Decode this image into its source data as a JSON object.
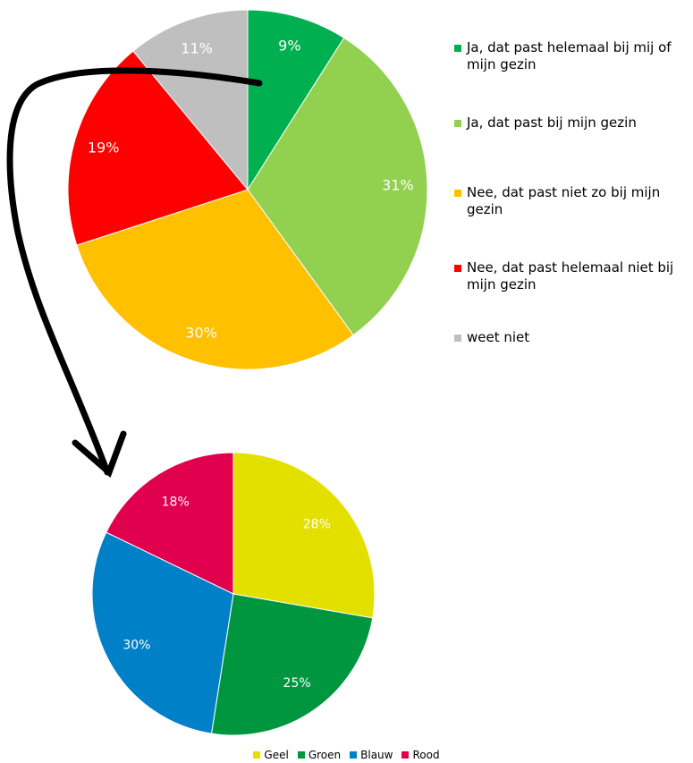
{
  "chart_data": [
    {
      "type": "pie",
      "categories": [
        "Ja, dat past helemaal bij mij of mijn gezin",
        "Ja, dat past bij mijn gezin",
        "Nee, dat past niet zo bij mijn gezin",
        "Nee, dat past helemaal niet bij mijn gezin",
        "weet niet"
      ],
      "values": [
        9,
        31,
        30,
        19,
        11
      ],
      "data_labels": [
        "9%",
        "31%",
        "30%",
        "19%",
        "11%"
      ],
      "colors": [
        "#00b050",
        "#92d050",
        "#ffc000",
        "#ff0000",
        "#bfbfbf"
      ],
      "legend_position": "right"
    },
    {
      "type": "pie",
      "categories": [
        "Geel",
        "Groen",
        "Blauw",
        "Rood"
      ],
      "values": [
        28,
        25,
        30,
        18
      ],
      "data_labels": [
        "28%",
        "25%",
        "30%",
        "18%"
      ],
      "colors": [
        "#e3e000",
        "#00963f",
        "#0080c6",
        "#e0004d"
      ],
      "legend_position": "bottom"
    }
  ],
  "annotation": {
    "type": "arrow",
    "color": "#000000",
    "from": "top-chart",
    "to": "bottom-chart"
  }
}
